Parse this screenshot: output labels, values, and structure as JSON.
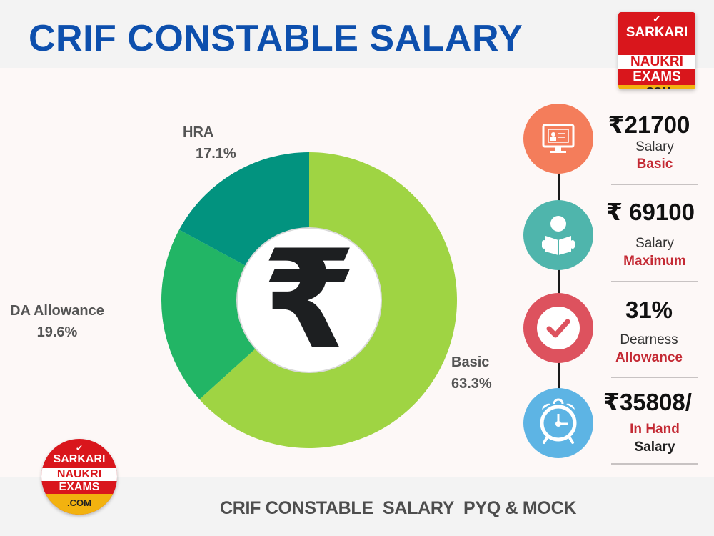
{
  "header": {
    "title": "CRIF CONSTABLE SALARY"
  },
  "footer": {
    "text": "CRIF CONSTABLE  SALARY  PYQ & MOCK"
  },
  "logo": {
    "check": "✔",
    "line1": "SARKARI",
    "line2": "NAUKRI",
    "line3": "EXAMS",
    "line4": ".COM"
  },
  "center_icon": {
    "glyph": "₹"
  },
  "colors": {
    "title": "#0d4fad",
    "basic": "#9fd443",
    "da": "#22b565",
    "hra": "#02937f",
    "accent_red": "#c42a34"
  },
  "chart_data": {
    "type": "pie",
    "variant": "donut",
    "title": "CRIF CONSTABLE SALARY",
    "categories": [
      "Basic",
      "DA Allowance",
      "HRA"
    ],
    "values": [
      63.3,
      19.6,
      17.1
    ],
    "unit": "%",
    "labels": [
      "63.3%",
      "19.6%",
      "17.1%"
    ],
    "colors": [
      "#9fd443",
      "#22b565",
      "#02937f"
    ],
    "start_angle": "12 o'clock, clockwise",
    "legend": "none (direct labels)"
  },
  "labels": {
    "hra": {
      "name": "HRA",
      "pct": "17.1%"
    },
    "da": {
      "name": "DA Allowance",
      "pct": "19.6%"
    },
    "basic": {
      "name": "Basic",
      "pct": "63.3%"
    }
  },
  "stats": [
    {
      "icon": "monitor-id-icon",
      "color": "#f47d5b",
      "value": "₹21700",
      "line1": "Salary",
      "line2": "Basic"
    },
    {
      "icon": "reader-icon",
      "color": "#4fb5ac",
      "value": "₹ 69100",
      "line1": "Salary",
      "line2": "Maximum"
    },
    {
      "icon": "check-icon",
      "color": "#dd525e",
      "value": "31%",
      "line1": "Dearness",
      "line2": "Allowance"
    },
    {
      "icon": "alarm-clock-icon",
      "color": "#5db4e4",
      "value": "₹35808/",
      "line1": "In Hand",
      "line2": "Salary"
    }
  ]
}
